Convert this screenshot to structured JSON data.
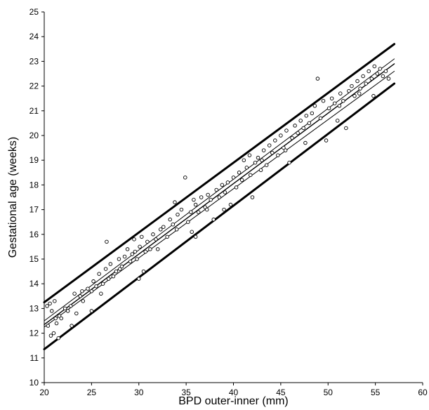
{
  "chart_data": {
    "type": "scatter",
    "title": "",
    "xlabel": "BPD outer-inner (mm)",
    "ylabel": "Gestational age (weeks)",
    "xlim": [
      20,
      60
    ],
    "ylim": [
      10,
      25
    ],
    "xticks": [
      20,
      25,
      30,
      35,
      40,
      45,
      50,
      55,
      60
    ],
    "yticks": [
      10,
      11,
      12,
      13,
      14,
      15,
      16,
      17,
      18,
      19,
      20,
      21,
      22,
      23,
      24,
      25
    ],
    "grid": false,
    "legend": "none",
    "points": [
      [
        20.3,
        13.1
      ],
      [
        20.6,
        13.2
      ],
      [
        20.8,
        12.9
      ],
      [
        21.1,
        13.3
      ],
      [
        20.7,
        11.9
      ],
      [
        21.0,
        12.0
      ],
      [
        21.3,
        12.4
      ],
      [
        21.6,
        12.7
      ],
      [
        21.8,
        12.6
      ],
      [
        21.5,
        11.8
      ],
      [
        22.2,
        13.0
      ],
      [
        22.8,
        13.1
      ],
      [
        23.2,
        13.6
      ],
      [
        22.9,
        12.3
      ],
      [
        23.4,
        12.8
      ],
      [
        23.8,
        13.5
      ],
      [
        24.1,
        13.3
      ],
      [
        24.6,
        13.8
      ],
      [
        25.0,
        13.7
      ],
      [
        25.2,
        14.1
      ],
      [
        25.5,
        13.9
      ],
      [
        25.8,
        14.4
      ],
      [
        26.0,
        13.6
      ],
      [
        26.2,
        14.0
      ],
      [
        26.5,
        14.6
      ],
      [
        26.8,
        14.2
      ],
      [
        27.0,
        14.8
      ],
      [
        27.3,
        14.3
      ],
      [
        27.6,
        14.5
      ],
      [
        26.6,
        15.7
      ],
      [
        25.0,
        12.9
      ],
      [
        27.9,
        15.0
      ],
      [
        28.2,
        14.7
      ],
      [
        28.5,
        15.1
      ],
      [
        28.8,
        15.4
      ],
      [
        29.1,
        14.9
      ],
      [
        29.3,
        15.2
      ],
      [
        29.6,
        15.3
      ],
      [
        29.8,
        15.0
      ],
      [
        30.1,
        15.5
      ],
      [
        30.3,
        15.9
      ],
      [
        30.5,
        14.5
      ],
      [
        30.9,
        15.7
      ],
      [
        31.2,
        15.4
      ],
      [
        31.5,
        16.0
      ],
      [
        31.8,
        15.8
      ],
      [
        30.0,
        14.2
      ],
      [
        29.5,
        15.8
      ],
      [
        32.3,
        16.2
      ],
      [
        32.6,
        16.3
      ],
      [
        33.0,
        15.9
      ],
      [
        33.3,
        16.6
      ],
      [
        33.6,
        16.4
      ],
      [
        33.8,
        17.3
      ],
      [
        34.1,
        16.8
      ],
      [
        34.5,
        17.0
      ],
      [
        34.9,
        18.3
      ],
      [
        35.2,
        16.5
      ],
      [
        35.5,
        16.9
      ],
      [
        35.8,
        17.4
      ],
      [
        36.0,
        17.2
      ],
      [
        36.3,
        16.9
      ],
      [
        36.6,
        17.5
      ],
      [
        36.0,
        15.9
      ],
      [
        35.6,
        16.1
      ],
      [
        37.0,
        17.1
      ],
      [
        37.3,
        17.6
      ],
      [
        37.6,
        17.4
      ],
      [
        37.9,
        16.6
      ],
      [
        38.2,
        17.8
      ],
      [
        38.5,
        17.5
      ],
      [
        38.8,
        18.0
      ],
      [
        39.1,
        17.7
      ],
      [
        39.4,
        18.1
      ],
      [
        39.7,
        17.2
      ],
      [
        40.0,
        18.3
      ],
      [
        40.3,
        17.9
      ],
      [
        40.6,
        18.5
      ],
      [
        40.9,
        18.2
      ],
      [
        41.1,
        19.0
      ],
      [
        41.4,
        18.7
      ],
      [
        41.7,
        19.2
      ],
      [
        42.0,
        17.5
      ],
      [
        42.3,
        18.9
      ],
      [
        42.6,
        19.1
      ],
      [
        42.9,
        18.6
      ],
      [
        43.2,
        19.4
      ],
      [
        43.5,
        18.8
      ],
      [
        43.8,
        19.6
      ],
      [
        44.1,
        19.3
      ],
      [
        44.4,
        19.8
      ],
      [
        44.7,
        19.2
      ],
      [
        45.0,
        20.0
      ],
      [
        45.3,
        19.5
      ],
      [
        45.6,
        20.2
      ],
      [
        45.9,
        18.9
      ],
      [
        46.2,
        19.9
      ],
      [
        46.5,
        20.4
      ],
      [
        46.8,
        20.1
      ],
      [
        47.1,
        20.6
      ],
      [
        47.4,
        20.3
      ],
      [
        47.7,
        20.8
      ],
      [
        48.0,
        20.5
      ],
      [
        48.3,
        20.9
      ],
      [
        48.6,
        21.2
      ],
      [
        48.9,
        22.3
      ],
      [
        49.2,
        20.7
      ],
      [
        49.5,
        21.4
      ],
      [
        49.8,
        19.8
      ],
      [
        50.1,
        21.1
      ],
      [
        50.4,
        21.5
      ],
      [
        50.7,
        21.3
      ],
      [
        51.0,
        20.6
      ],
      [
        51.3,
        21.7
      ],
      [
        51.6,
        21.4
      ],
      [
        51.9,
        20.3
      ],
      [
        52.2,
        21.8
      ],
      [
        52.5,
        22.0
      ],
      [
        52.8,
        21.6
      ],
      [
        53.1,
        22.2
      ],
      [
        53.4,
        21.9
      ],
      [
        53.7,
        22.4
      ],
      [
        54.0,
        22.1
      ],
      [
        54.3,
        22.6
      ],
      [
        54.6,
        22.3
      ],
      [
        54.9,
        22.8
      ],
      [
        55.2,
        22.5
      ],
      [
        55.5,
        22.7
      ],
      [
        55.8,
        22.4
      ],
      [
        56.1,
        22.6
      ],
      [
        56.4,
        22.3
      ],
      [
        54.8,
        21.6
      ],
      [
        53.3,
        21.7
      ],
      [
        51.2,
        21.2
      ],
      [
        47.6,
        19.7
      ],
      [
        45.5,
        19.4
      ],
      [
        43.0,
        19.0
      ],
      [
        41.8,
        18.4
      ],
      [
        39.0,
        17.0
      ],
      [
        37.2,
        17.0
      ],
      [
        34.0,
        16.2
      ],
      [
        32.0,
        15.4
      ],
      [
        30.7,
        15.3
      ],
      [
        28.0,
        14.6
      ],
      [
        24.0,
        13.7
      ],
      [
        22.5,
        12.9
      ],
      [
        21.2,
        12.6
      ],
      [
        20.4,
        12.3
      ]
    ],
    "lines": [
      {
        "name": "",
        "role": "upper-outer",
        "stroke_width": 3,
        "x": [
          20,
          57
        ],
        "y": [
          13.25,
          23.7
        ]
      },
      {
        "name": "",
        "role": "lower-outer",
        "stroke_width": 3,
        "x": [
          20,
          57
        ],
        "y": [
          11.35,
          22.1
        ]
      },
      {
        "name": "",
        "role": "upper-mid",
        "stroke_width": 1,
        "x": [
          20,
          57
        ],
        "y": [
          12.5,
          23.1
        ]
      },
      {
        "name": "",
        "role": "lower-mid",
        "stroke_width": 1,
        "x": [
          20,
          57
        ],
        "y": [
          12.25,
          22.6
        ]
      },
      {
        "name": "",
        "role": "fit",
        "stroke_width": 1.4,
        "x": [
          20,
          57
        ],
        "y": [
          12.35,
          22.9
        ]
      }
    ]
  }
}
